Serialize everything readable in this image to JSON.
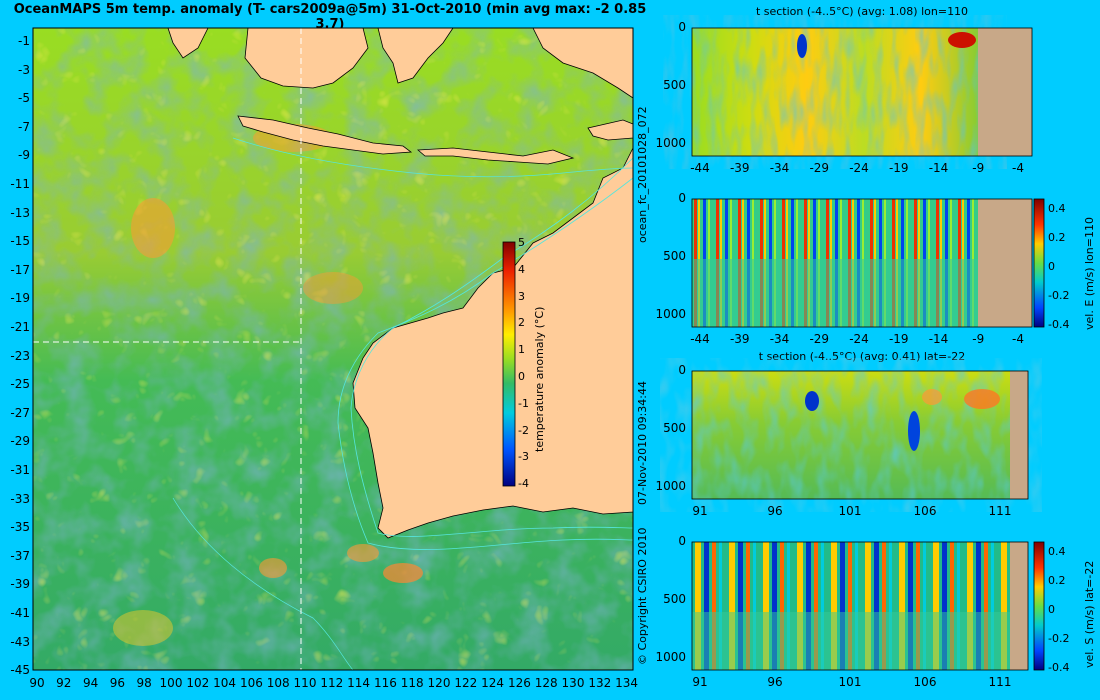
{
  "map": {
    "title": "OceanMAPS 5m temp. anomaly (T- cars2009a@5m) 31-Oct-2010 (min avg max: -2 0.85 3.7)",
    "lat_ticks": [
      "-1",
      "-3",
      "-5",
      "-7",
      "-9",
      "-11",
      "-13",
      "-15",
      "-17",
      "-19",
      "-21",
      "-23",
      "-25",
      "-27",
      "-29",
      "-31",
      "-33",
      "-35",
      "-37",
      "-39",
      "-41",
      "-43",
      "-45"
    ],
    "lon_ticks": [
      "90",
      "92",
      "94",
      "96",
      "98",
      "100",
      "102",
      "104",
      "106",
      "108",
      "110",
      "112",
      "114",
      "116",
      "118",
      "120",
      "122",
      "124",
      "126",
      "128",
      "130",
      "132",
      "134"
    ],
    "colorbar": {
      "label": "temperature anomaly (°C)",
      "ticks": [
        "5",
        "4",
        "3",
        "2",
        "1",
        "0",
        "-1",
        "-2",
        "-3",
        "-4"
      ],
      "range": [
        -4,
        5
      ]
    },
    "section_lat": -22,
    "section_lon": 110
  },
  "side_labels": {
    "run_id": "ocean_fc_20101028_072",
    "timestamp": "07-Nov-2010 09:34:44",
    "copyright": "© Copyright CSIRO 2010"
  },
  "panels": [
    {
      "subtitle": "t section (-4..5°C) (avg: 1.08) lon=110",
      "y_ticks": [
        "0",
        "500",
        "1000"
      ],
      "x_ticks": [
        "-44",
        "-39",
        "-34",
        "-29",
        "-24",
        "-19",
        "-14",
        "-9",
        "-4"
      ]
    },
    {
      "subtitle": "",
      "y_ticks": [
        "0",
        "500",
        "1000"
      ],
      "x_ticks": [
        "-44",
        "-39",
        "-34",
        "-29",
        "-24",
        "-19",
        "-14",
        "-9",
        "-4"
      ],
      "colorbar_label": "vel. E (m/s) lon=110",
      "colorbar_ticks": [
        "0.4",
        "0.2",
        "0",
        "-0.2",
        "-0.4"
      ]
    },
    {
      "subtitle": "t section (-4..5°C) (avg: 0.41) lat=-22",
      "y_ticks": [
        "0",
        "500",
        "1000"
      ],
      "x_ticks": [
        "91",
        "96",
        "101",
        "106",
        "111"
      ]
    },
    {
      "subtitle": "",
      "y_ticks": [
        "0",
        "500",
        "1000"
      ],
      "x_ticks": [
        "91",
        "96",
        "101",
        "106",
        "111"
      ],
      "colorbar_label": "vel. S (m/s) lat=-22",
      "colorbar_ticks": [
        "0.4",
        "0.2",
        "0",
        "-0.2",
        "-0.4"
      ]
    }
  ],
  "colors": {
    "background": "#00ccff",
    "land": "#ffcc99",
    "section_land": "#c8a888",
    "ocean_mid": "#66cc33"
  }
}
